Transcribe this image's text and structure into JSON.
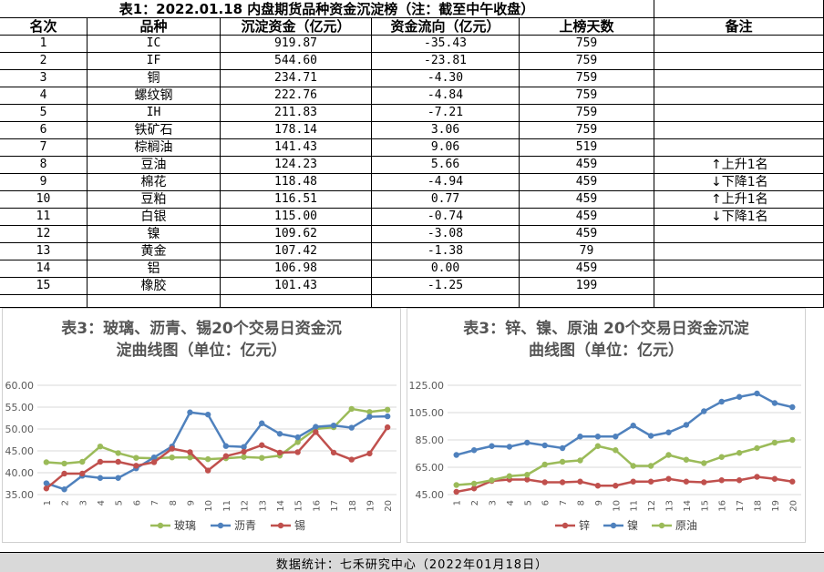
{
  "table": {
    "title": "表1：2022.01.18 内盘期货品种资金沉淀榜（注：截至中午收盘）",
    "headers": [
      "名次",
      "品种",
      "沉淀资金（亿元）",
      "资金流向（亿元）",
      "上榜天数",
      "备注"
    ],
    "rows": [
      {
        "rank": "1",
        "name": "IC",
        "fund": "919.87",
        "flow": "-35.43",
        "days": "759",
        "note": ""
      },
      {
        "rank": "2",
        "name": "IF",
        "fund": "544.60",
        "flow": "-23.81",
        "days": "759",
        "note": ""
      },
      {
        "rank": "3",
        "name": "铜",
        "fund": "234.71",
        "flow": "-4.30",
        "days": "759",
        "note": ""
      },
      {
        "rank": "4",
        "name": "螺纹钢",
        "fund": "222.76",
        "flow": "-4.84",
        "days": "759",
        "note": ""
      },
      {
        "rank": "5",
        "name": "IH",
        "fund": "211.83",
        "flow": "-7.21",
        "days": "759",
        "note": ""
      },
      {
        "rank": "6",
        "name": "铁矿石",
        "fund": "178.14",
        "flow": "3.06",
        "days": "759",
        "note": ""
      },
      {
        "rank": "7",
        "name": "棕榈油",
        "fund": "141.43",
        "flow": "9.06",
        "days": "519",
        "note": ""
      },
      {
        "rank": "8",
        "name": "豆油",
        "fund": "124.23",
        "flow": "5.66",
        "days": "459",
        "note": "上升1名",
        "note_dir": "up"
      },
      {
        "rank": "9",
        "name": "棉花",
        "fund": "118.48",
        "flow": "-4.94",
        "days": "459",
        "note": "下降1名",
        "note_dir": "down"
      },
      {
        "rank": "10",
        "name": "豆粕",
        "fund": "116.51",
        "flow": "0.77",
        "days": "459",
        "note": "上升1名",
        "note_dir": "up"
      },
      {
        "rank": "11",
        "name": "白银",
        "fund": "115.00",
        "flow": "-0.74",
        "days": "459",
        "note": "下降1名",
        "note_dir": "down"
      },
      {
        "rank": "12",
        "name": "镍",
        "fund": "109.62",
        "flow": "-3.08",
        "days": "459",
        "note": ""
      },
      {
        "rank": "13",
        "name": "黄金",
        "fund": "107.42",
        "flow": "-1.38",
        "days": "79",
        "note": ""
      },
      {
        "rank": "14",
        "name": "铝",
        "fund": "106.98",
        "flow": "0.00",
        "days": "459",
        "note": ""
      },
      {
        "rank": "15",
        "name": "橡胶",
        "fund": "101.43",
        "flow": "-1.25",
        "days": "199",
        "note": ""
      }
    ]
  },
  "chart_data": [
    {
      "type": "line",
      "title_line1": "表3：玻璃、沥青、锡20个交易日资金沉",
      "title_line2": "淀曲线图（单位：亿元）",
      "x": [
        "1",
        "2",
        "3",
        "4",
        "5",
        "6",
        "7",
        "8",
        "9",
        "10",
        "11",
        "12",
        "13",
        "14",
        "15",
        "16",
        "17",
        "18",
        "19",
        "20"
      ],
      "ylim": [
        35,
        60
      ],
      "yticks": [
        "35.00",
        "40.00",
        "45.00",
        "50.00",
        "55.00",
        "60.00"
      ],
      "grid": true,
      "legend_position": "bottom",
      "series": [
        {
          "name": "玻璃",
          "color": "#9bbb59",
          "values": [
            42.4,
            42.1,
            42.5,
            46.0,
            44.5,
            43.4,
            43.3,
            43.5,
            43.5,
            43.1,
            43.3,
            43.6,
            43.4,
            43.9,
            47.0,
            50.0,
            50.4,
            54.6,
            53.9,
            54.4
          ]
        },
        {
          "name": "沥青",
          "color": "#4f81bd",
          "values": [
            37.6,
            36.2,
            39.3,
            38.8,
            38.8,
            41.0,
            43.5,
            46.0,
            53.8,
            53.3,
            46.1,
            45.9,
            51.3,
            48.9,
            48.1,
            50.5,
            50.8,
            50.3,
            52.8,
            52.9
          ]
        },
        {
          "name": "锡",
          "color": "#c0504d",
          "values": [
            36.4,
            39.8,
            39.8,
            42.5,
            42.5,
            41.6,
            42.4,
            45.5,
            44.7,
            40.5,
            43.8,
            44.8,
            46.3,
            44.6,
            44.7,
            49.3,
            44.6,
            43.0,
            44.4,
            50.4
          ]
        }
      ]
    },
    {
      "type": "line",
      "title_line1": "表3：锌、镍、原油 20个交易日资金沉淀",
      "title_line2": "曲线图（单位：亿元）",
      "x": [
        "1",
        "2",
        "3",
        "4",
        "5",
        "6",
        "7",
        "8",
        "9",
        "10",
        "11",
        "12",
        "13",
        "14",
        "15",
        "16",
        "17",
        "18",
        "19",
        "20"
      ],
      "ylim": [
        45,
        125
      ],
      "yticks": [
        "45.00",
        "65.00",
        "85.00",
        "105.00",
        "125.00"
      ],
      "grid": true,
      "legend_position": "bottom",
      "series": [
        {
          "name": "锌",
          "color": "#c0504d",
          "values": [
            47.0,
            49.5,
            55.0,
            56.0,
            56.0,
            54.0,
            54.0,
            54.5,
            51.5,
            51.5,
            54.5,
            54.5,
            56.5,
            54.5,
            54.0,
            55.5,
            55.5,
            58.0,
            56.5,
            54.5
          ]
        },
        {
          "name": "镍",
          "color": "#4f81bd",
          "values": [
            74.0,
            77.5,
            80.5,
            80.0,
            83.0,
            81.0,
            79.0,
            87.5,
            87.5,
            87.5,
            95.5,
            88.0,
            90.5,
            96.0,
            106.0,
            113.0,
            116.5,
            119.0,
            112.0,
            109.0
          ]
        },
        {
          "name": "原油",
          "color": "#9bbb59",
          "values": [
            52.0,
            53.0,
            55.5,
            58.5,
            59.5,
            67.0,
            69.0,
            70.0,
            80.5,
            77.5,
            66.0,
            66.0,
            74.0,
            70.5,
            68.0,
            72.5,
            75.5,
            79.0,
            83.0,
            85.0
          ]
        }
      ]
    }
  ],
  "footer": {
    "text": "数据统计：七禾研究中心（2022年01月18日）"
  }
}
